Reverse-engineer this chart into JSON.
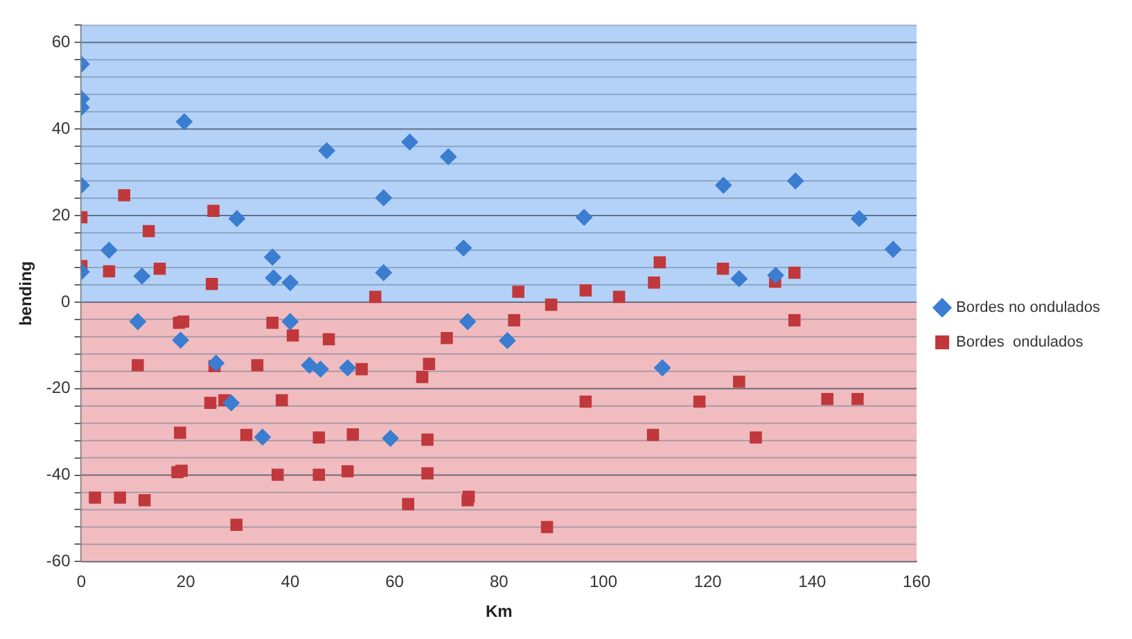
{
  "chart_data": {
    "type": "scatter",
    "xlabel": "Km",
    "ylabel": "bending",
    "xlim": [
      0,
      160
    ],
    "xticks": [
      0,
      20,
      40,
      60,
      80,
      100,
      120,
      140,
      160
    ],
    "ylim": [
      -60,
      64
    ],
    "yticks": [
      -60,
      {
        "value": -56,
        "label": null
      },
      {
        "value": -52,
        "label": null
      },
      {
        "value": -48,
        "label": null
      },
      {
        "value": -44,
        "label": null
      },
      -40,
      {
        "value": -36,
        "label": null
      },
      {
        "value": -32,
        "label": null
      },
      {
        "value": -28,
        "label": null
      },
      {
        "value": -24,
        "label": null
      },
      -20,
      {
        "value": -16,
        "label": null
      },
      {
        "value": -12,
        "label": null
      },
      {
        "value": -8,
        "label": null
      },
      {
        "value": -4,
        "label": null
      },
      0,
      {
        "value": 4,
        "label": null
      },
      {
        "value": 8,
        "label": null
      },
      {
        "value": 12,
        "label": null
      },
      {
        "value": 16,
        "label": null
      },
      20,
      {
        "value": 24,
        "label": null
      },
      {
        "value": 28,
        "label": null
      },
      {
        "value": 32,
        "label": null
      },
      {
        "value": 36,
        "label": null
      },
      40,
      {
        "value": 44,
        "label": null
      },
      {
        "value": 48,
        "label": null
      },
      {
        "value": 52,
        "label": null
      },
      {
        "value": 56,
        "label": null
      },
      60,
      {
        "value": 64,
        "label": null
      }
    ],
    "grid": "y",
    "legend": "right",
    "bands": [
      {
        "axis": "y",
        "from": 0,
        "to": 64,
        "color": "#b4d2f7"
      },
      {
        "axis": "y",
        "from": -60,
        "to": 0,
        "color": "#f0bcbf"
      }
    ],
    "series": [
      {
        "name": "Bordes no ondulados",
        "color": "#3b7dd0",
        "marker": "diamond",
        "x": [
          0,
          0,
          0,
          0,
          0,
          5.3,
          10.8,
          11.6,
          19.7,
          19,
          29.8,
          25.8,
          28.7,
          34.7,
          36.6,
          36.8,
          40,
          40,
          47,
          43.7,
          45.8,
          51,
          57.9,
          57.9,
          62.9,
          70.3,
          73.2,
          74,
          96.3,
          123,
          126,
          59.2,
          81.6,
          111.3,
          133,
          136.8,
          149,
          155.5
        ],
        "values": [
          55,
          47,
          45,
          27,
          7,
          12,
          -4.5,
          6,
          41.7,
          -8.8,
          19.3,
          -14.1,
          -23.3,
          -31.2,
          10.4,
          5.6,
          4.5,
          -4.5,
          35,
          -14.6,
          -15.5,
          -15.2,
          24.1,
          6.8,
          37,
          33.6,
          12.5,
          -4.5,
          19.6,
          27,
          5.4,
          -31.5,
          -8.9,
          -15.2,
          6.2,
          28,
          19.3,
          12.2
        ]
      },
      {
        "name": "Bordes  ondulados",
        "color": "#c0383c",
        "marker": "square",
        "x": [
          0,
          0,
          8.2,
          5.3,
          12.9,
          15,
          25.3,
          25,
          18.7,
          19.5,
          36.6,
          40.5,
          47.4,
          10.8,
          25.5,
          33.7,
          53.7,
          2.6,
          7.4,
          12.1,
          18.9,
          18.4,
          19.2,
          24.7,
          27.4,
          29.7,
          31.6,
          38.4,
          37.6,
          45.5,
          45.5,
          51,
          52,
          56.3,
          83.7,
          90,
          96.6,
          103,
          109.7,
          110.8,
          122.9,
          82.9,
          70,
          66.6,
          65.3,
          66.3,
          66.3,
          62.6,
          74,
          74.2,
          89.2,
          96.6,
          118.4,
          109.5,
          126,
          132.9,
          136.6,
          136.6,
          142.9,
          148.7,
          129.2
        ],
        "values": [
          19.6,
          8.3,
          24.7,
          7.1,
          16.4,
          7.7,
          21.1,
          4.2,
          -4.8,
          -4.5,
          -4.8,
          -7.7,
          -8.6,
          -14.6,
          -14.8,
          -14.6,
          -15.5,
          -45.2,
          -45.2,
          -45.8,
          -30.2,
          -39.3,
          -39,
          -23.3,
          -22.7,
          -51.5,
          -30.7,
          -22.7,
          -39.9,
          -31.3,
          -39.9,
          -39.1,
          -30.6,
          1.2,
          2.4,
          -0.6,
          2.7,
          1.2,
          4.5,
          9.2,
          7.7,
          -4.2,
          -8.3,
          -14.3,
          -17.3,
          -31.8,
          -39.6,
          -46.7,
          -45.8,
          -45,
          -52,
          -23,
          -23,
          -30.7,
          -18.4,
          4.7,
          6.8,
          -4.2,
          -22.4,
          -22.4,
          -31.3
        ]
      }
    ]
  }
}
